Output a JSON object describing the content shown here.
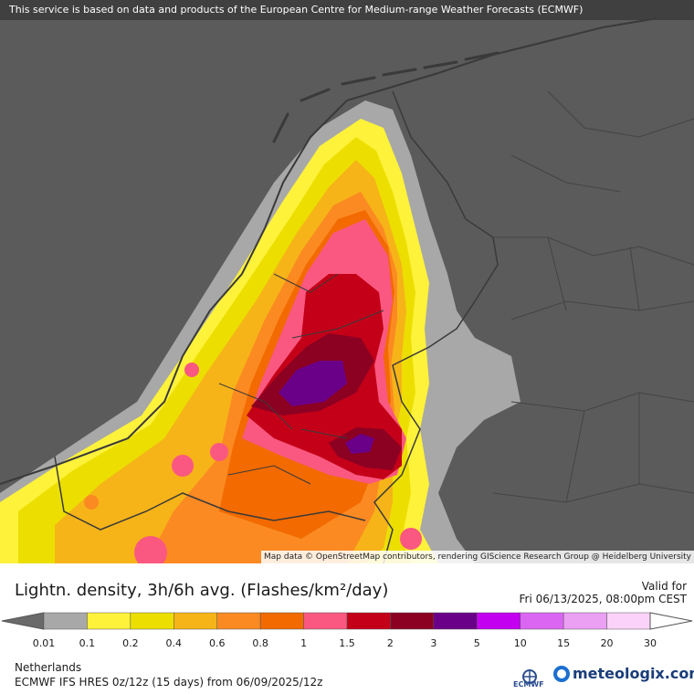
{
  "map": {
    "banner": "This service is based on data and products of the European Centre for Medium-range Weather Forecasts (ECMWF)",
    "attribution": "Map data © OpenStreetMap contributors, rendering GIScience Research Group @ Heidelberg University"
  },
  "legend": {
    "title": "Lightn. density, 3h/6h avg. (Flashes/km²/day)",
    "valid_label": "Valid for",
    "valid_time": "Fri 06/13/2025, 08:00pm CEST",
    "ticks": [
      "0.01",
      "0.1",
      "0.2",
      "0.4",
      "0.6",
      "0.8",
      "1",
      "1.5",
      "2",
      "3",
      "5",
      "10",
      "15",
      "20",
      "30"
    ],
    "colors": [
      "#a8a8a8",
      "#fff23a",
      "#ecdf00",
      "#f6b418",
      "#fb8a22",
      "#f26a00",
      "#fa5880",
      "#c40018",
      "#8c0022",
      "#6a0088",
      "#c400f0",
      "#da66f2",
      "#eba0f4",
      "#fbd2fa"
    ],
    "low_arrow_color": "#6a6a6a",
    "high_arrow_color": "#ffffff"
  },
  "footer": {
    "region": "Netherlands",
    "model_run": "ECMWF IFS HRES 0z/12z (15 days) from  06/09/2025/12z",
    "ecmwf_label": "ECMWF",
    "brand": "meteologix.com"
  }
}
